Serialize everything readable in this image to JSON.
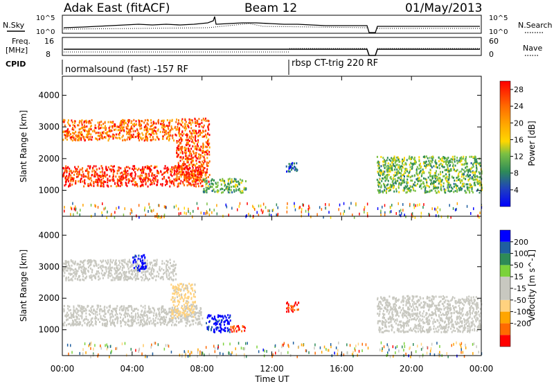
{
  "header": {
    "station": "Adak East (fitACF)",
    "beam": "Beam 12",
    "date": "01/May/2013"
  },
  "aux_panels": {
    "nsky_label": "N.Sky",
    "nsky_ticks": [
      "10^5",
      "10^0"
    ],
    "nsearch_label": "N.Search",
    "freq_label": "Freq.",
    "freq_unit": "[MHz]",
    "freq_ticks": [
      "16",
      "8"
    ],
    "nave_label": "Nave",
    "nave_ticks": [
      "60",
      "0"
    ],
    "cpid_label": "CPID",
    "cpid_segments": [
      "normalsound (fast) -157 RF",
      "rbsp CT-trig 220 RF"
    ]
  },
  "colors": {
    "power_scale": [
      "#0000ff",
      "#1f5fa0",
      "#2e8b57",
      "#7bc043",
      "#ffd700",
      "#ffa500",
      "#ff6a00",
      "#ff0000"
    ],
    "velocity_scale": [
      "#ff0000",
      "#ff6a00",
      "#ffa500",
      "#ffd27f",
      "#c8c8c0",
      "#c8c8c0",
      "#7bd23a",
      "#2e8b57",
      "#1f5fa0",
      "#0000ff"
    ],
    "ground_scatter": "#c0c0b8"
  },
  "chart_data": [
    {
      "type": "heatmap",
      "name": "power",
      "ylabel": "Slant Range [km]",
      "xlabel": "Time UT",
      "xticks": [
        "00:00",
        "04:00",
        "08:00",
        "12:00",
        "16:00",
        "20:00",
        "00:00"
      ],
      "yticks": [
        "1000",
        "2000",
        "3000",
        "4000"
      ],
      "xlim_hours": [
        0,
        24
      ],
      "ylim_km": [
        180,
        4600
      ],
      "colorbar": {
        "label": "Power [dB]",
        "ticks": [
          "4",
          "8",
          "12",
          "16",
          "20",
          "24",
          "28"
        ],
        "range": [
          0,
          30
        ]
      },
      "regions": [
        {
          "t0": 0.0,
          "t1": 8.0,
          "r0": 1150,
          "r1": 1800,
          "value": 27
        },
        {
          "t0": 0.0,
          "t1": 6.5,
          "r0": 2600,
          "r1": 3250,
          "value": 24
        },
        {
          "t0": 6.5,
          "t1": 8.4,
          "r0": 1300,
          "r1": 3300,
          "value": 25
        },
        {
          "t0": 8.0,
          "t1": 10.5,
          "r0": 950,
          "r1": 1400,
          "value": 12
        },
        {
          "t0": 12.8,
          "t1": 13.5,
          "r0": 1600,
          "r1": 1900,
          "value": 6
        },
        {
          "t0": 18.0,
          "t1": 24.0,
          "r0": 950,
          "r1": 2100,
          "value": 12
        }
      ]
    },
    {
      "type": "heatmap",
      "name": "velocity",
      "ylabel": "Slant Range [km]",
      "xlabel": "Time UT",
      "xticks": [
        "00:00",
        "04:00",
        "08:00",
        "12:00",
        "16:00",
        "20:00",
        "00:00"
      ],
      "yticks": [
        "1000",
        "2000",
        "3000",
        "4000"
      ],
      "xlim_hours": [
        0,
        24
      ],
      "ylim_km": [
        180,
        4600
      ],
      "colorbar": {
        "label": "Velocity [m s^-1]",
        "ticks": [
          "200",
          "100",
          "50",
          "15",
          "-15",
          "-50",
          "-100",
          "-200"
        ],
        "range": [
          -250,
          250
        ]
      },
      "regions": [
        {
          "t0": 0.0,
          "t1": 8.0,
          "r0": 1150,
          "r1": 1800,
          "value": 0
        },
        {
          "t0": 0.0,
          "t1": 6.5,
          "r0": 2600,
          "r1": 3250,
          "value": 0
        },
        {
          "t0": 4.0,
          "t1": 4.8,
          "r0": 2900,
          "r1": 3400,
          "value": 220
        },
        {
          "t0": 6.2,
          "t1": 7.6,
          "r0": 1400,
          "r1": 2500,
          "value": -70
        },
        {
          "t0": 8.2,
          "t1": 9.6,
          "r0": 950,
          "r1": 1500,
          "value": 210
        },
        {
          "t0": 9.6,
          "t1": 10.5,
          "r0": 950,
          "r1": 1150,
          "value": -200
        },
        {
          "t0": 12.8,
          "t1": 13.5,
          "r0": 1600,
          "r1": 1900,
          "value": -200
        },
        {
          "t0": 18.0,
          "t1": 24.0,
          "r0": 950,
          "r1": 2100,
          "value": 0
        }
      ]
    }
  ]
}
